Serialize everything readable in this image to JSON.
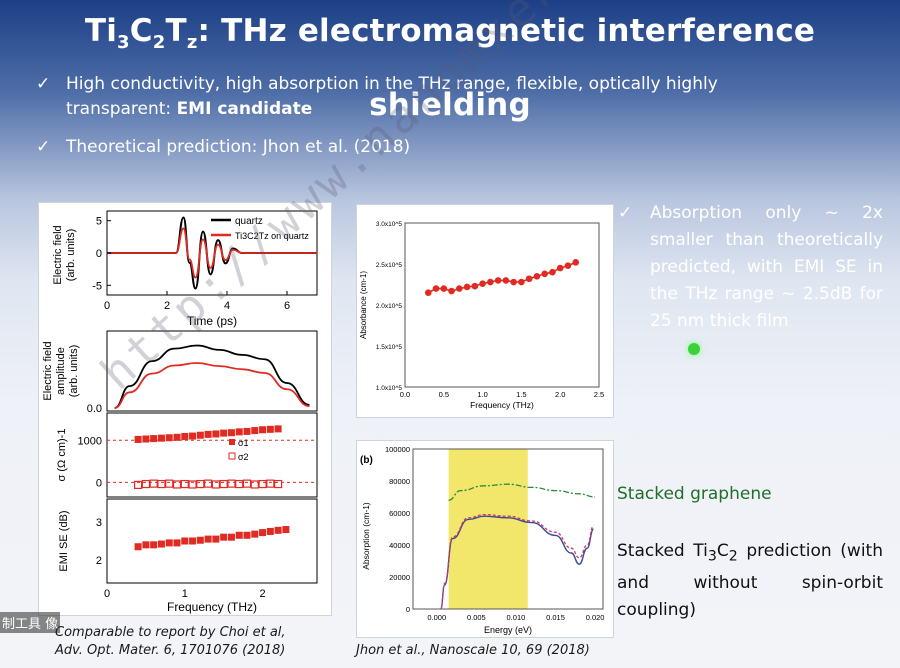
{
  "slide": {
    "title_main": "Ti",
    "title_sub1": "3",
    "title_mid": "C",
    "title_sub2": "2",
    "title_T": "T",
    "title_sub3": "z",
    "title_rest": ": THz electromagnetic interference shielding",
    "check_glyph": "✓",
    "bullet1_text": "High conductivity, high absorption in the THz range, flexible, optically highly transparent: ",
    "bullet1_bold": "EMI candidate",
    "bullet2_text": "Theoretical prediction: Jhon et al. (2018)",
    "right_text": "Absorption only ~ 2x smaller than theoretically predicted, with EMI SE in the THz range ~ 2.5dB for 25 nm thick film",
    "graphene_text": "Stacked graphene",
    "ti_text_a": "Stacked Ti",
    "ti_sub1": "3",
    "ti_text_b": "C",
    "ti_sub2": "2",
    "ti_text_c": " prediction (with and without spin-orbit coupling)",
    "caption_left_1": "Comparable to report by Choi et al,",
    "caption_left_2": "Adv. Opt. Mater. 6, 1701076 (2018)",
    "caption_mid": "Jhon et al., Nanoscale 10, 69 (2018)",
    "watermark": "http://www.nanomxenes.com",
    "corner_badge": "制工具 像"
  },
  "colors": {
    "graphene_green": "#1f6f2a",
    "highlight_yellow": "#f2e76a",
    "data_red": "#e02a22"
  },
  "chart_data": [
    {
      "type": "line",
      "panel": "top-left",
      "xlabel": "Time (ps)",
      "ylabel": "Electric field (arb. units)",
      "xticks": [
        "0",
        "2",
        "4",
        "6"
      ],
      "yticks": [
        "5",
        "0",
        "-5"
      ],
      "xlim": [
        0,
        7
      ],
      "ylim": [
        -6.5,
        6.5
      ],
      "legend": [
        "quartz",
        "Ti3C2Tz on quartz"
      ],
      "series": [
        {
          "name": "quartz",
          "x": [
            0,
            2.3,
            2.55,
            2.75,
            2.95,
            3.2,
            3.45,
            3.7,
            3.95,
            4.2,
            4.5,
            7
          ],
          "values": [
            0,
            0,
            5.5,
            -1.5,
            -5.5,
            3.3,
            -3.3,
            2.0,
            -1.6,
            0.7,
            0,
            0
          ]
        },
        {
          "name": "Ti3C2Tz on quartz",
          "x": [
            0,
            2.3,
            2.55,
            2.75,
            2.95,
            3.2,
            3.45,
            3.7,
            3.95,
            4.2,
            4.5,
            7
          ],
          "values": [
            0,
            0,
            3.8,
            -1.0,
            -3.8,
            2.1,
            -2.3,
            1.3,
            -1.1,
            0.5,
            0,
            0
          ]
        }
      ]
    },
    {
      "type": "line",
      "panel": "mid-left",
      "ylabel": "Electric field amplitude (arb. units)",
      "yticks": [
        "0.0"
      ],
      "series": [
        {
          "name": "quartz",
          "x": [
            0.1,
            0.3,
            0.6,
            0.9,
            1.2,
            1.5,
            1.8,
            2.1,
            2.4,
            2.7
          ],
          "values": [
            0,
            0.35,
            0.75,
            0.95,
            1.0,
            0.93,
            0.85,
            0.78,
            0.4,
            0.05
          ]
        },
        {
          "name": "Ti3C2Tz on quartz",
          "x": [
            0.1,
            0.3,
            0.6,
            0.9,
            1.2,
            1.5,
            1.8,
            2.1,
            2.4,
            2.7
          ],
          "values": [
            0,
            0.25,
            0.55,
            0.68,
            0.72,
            0.67,
            0.62,
            0.56,
            0.3,
            0.03
          ]
        }
      ]
    },
    {
      "type": "scatter",
      "panel": "conductivity",
      "ylabel": "σ (Ω cm)-1",
      "yticks": [
        "1000",
        "0"
      ],
      "legend": [
        "σ1",
        "σ2"
      ],
      "series": [
        {
          "name": "σ1",
          "x": [
            0.4,
            0.5,
            0.6,
            0.7,
            0.8,
            0.9,
            1.0,
            1.1,
            1.2,
            1.3,
            1.4,
            1.5,
            1.6,
            1.7,
            1.8,
            1.9,
            2.0,
            2.1,
            2.2
          ],
          "values": [
            1020,
            1030,
            1040,
            1050,
            1060,
            1070,
            1090,
            1100,
            1120,
            1140,
            1150,
            1170,
            1180,
            1200,
            1210,
            1230,
            1250,
            1260,
            1270
          ]
        },
        {
          "name": "σ2",
          "x": [
            0.4,
            0.5,
            0.6,
            0.7,
            0.8,
            0.9,
            1.0,
            1.1,
            1.2,
            1.3,
            1.4,
            1.5,
            1.6,
            1.7,
            1.8,
            1.9,
            2.0,
            2.1,
            2.2
          ],
          "values": [
            -60,
            -40,
            -30,
            -40,
            -30,
            -50,
            -40,
            -50,
            -40,
            -30,
            -50,
            -40,
            -30,
            -40,
            -30,
            -50,
            -40,
            -30,
            -40
          ]
        }
      ]
    },
    {
      "type": "scatter",
      "panel": "bottom-left",
      "xlabel": "Frequency (THz)",
      "ylabel": "EMI SE (dB)",
      "xticks": [
        "0",
        "1",
        "2"
      ],
      "yticks": [
        "3",
        "2"
      ],
      "xlim": [
        0,
        2.7
      ],
      "ylim": [
        1.4,
        3.6
      ],
      "series": [
        {
          "name": "EMI SE",
          "x": [
            0.4,
            0.5,
            0.6,
            0.7,
            0.8,
            0.9,
            1.0,
            1.1,
            1.2,
            1.3,
            1.4,
            1.5,
            1.6,
            1.7,
            1.8,
            1.9,
            2.0,
            2.1,
            2.2,
            2.3
          ],
          "values": [
            2.35,
            2.4,
            2.4,
            2.42,
            2.45,
            2.45,
            2.5,
            2.5,
            2.52,
            2.55,
            2.55,
            2.6,
            2.6,
            2.65,
            2.65,
            2.68,
            2.72,
            2.75,
            2.78,
            2.8
          ]
        }
      ]
    },
    {
      "type": "line",
      "panel": "absorbance",
      "xlabel": "Frequency (THz)",
      "ylabel": "Absorbance (cm-1)",
      "xticks": [
        "0.0",
        "0.5",
        "1.0",
        "1.5",
        "2.0",
        "2.5"
      ],
      "yticks": [
        "1.0x10^5",
        "1.5x10^5",
        "2.0x10^5",
        "2.5x10^5",
        "3.0x10^5"
      ],
      "xlim": [
        0,
        2.5
      ],
      "ylim": [
        100000.0,
        300000.0
      ],
      "series": [
        {
          "name": "Absorbance",
          "x": [
            0.3,
            0.4,
            0.5,
            0.6,
            0.7,
            0.8,
            0.9,
            1.0,
            1.1,
            1.2,
            1.3,
            1.4,
            1.5,
            1.6,
            1.7,
            1.8,
            1.9,
            2.0,
            2.1,
            2.2
          ],
          "values": [
            215000,
            220000,
            220000,
            217000,
            220000,
            222000,
            223000,
            226000,
            228000,
            230000,
            230000,
            228000,
            228000,
            232000,
            235000,
            238000,
            240000,
            245000,
            248000,
            252000
          ]
        }
      ]
    },
    {
      "type": "line",
      "panel": "theory",
      "panel_label": "(b)",
      "xlabel": "Energy (eV)",
      "ylabel": "Absorption (cm-1)",
      "xticks": [
        "0.000",
        "0.005",
        "0.010",
        "0.015",
        "0.020"
      ],
      "yticks": [
        "0",
        "20000",
        "40000",
        "60000",
        "80000",
        "100000"
      ],
      "xlim": [
        -0.003,
        0.021
      ],
      "ylim": [
        0,
        100000
      ],
      "highlight_range": [
        0.0015,
        0.0115
      ],
      "series": [
        {
          "name": "Stacked graphene",
          "x": [
            0.0015,
            0.003,
            0.006,
            0.009,
            0.012,
            0.015,
            0.018,
            0.02
          ],
          "values": [
            68000,
            74000,
            77000,
            78000,
            76000,
            74000,
            72000,
            70000
          ]
        },
        {
          "name": "Stacked Ti3C2 with spin-orbit coupling",
          "x": [
            0.0005,
            0.001,
            0.002,
            0.004,
            0.006,
            0.009,
            0.012,
            0.015,
            0.017,
            0.018,
            0.019,
            0.0198
          ],
          "values": [
            0,
            15000,
            44000,
            56000,
            58000,
            57000,
            54000,
            46000,
            35000,
            28000,
            38000,
            50000
          ]
        },
        {
          "name": "Stacked Ti3C2 without spin-orbit coupling",
          "x": [
            0.0005,
            0.001,
            0.002,
            0.004,
            0.006,
            0.009,
            0.012,
            0.015,
            0.017,
            0.018,
            0.019,
            0.0198
          ],
          "values": [
            0,
            16000,
            45000,
            57000,
            59000,
            58000,
            55000,
            48000,
            38000,
            32000,
            40000,
            52000
          ]
        }
      ]
    }
  ]
}
